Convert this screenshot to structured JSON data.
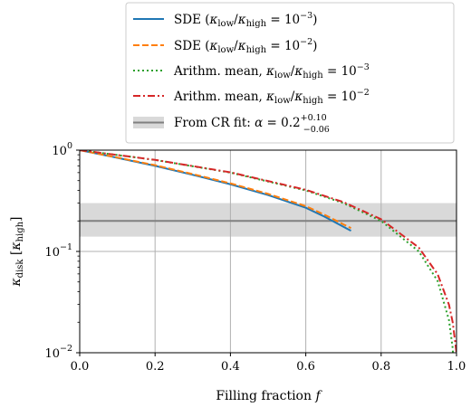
{
  "chart_data": {
    "type": "line",
    "xlabel": "Filling fraction f",
    "ylabel": "κ_disk [κ_high]",
    "xlim": [
      0.0,
      1.0
    ],
    "ylim": [
      0.01,
      1.0
    ],
    "yscale": "log",
    "grid": true,
    "legend_position": "top-center",
    "x_ticks": [
      0.0,
      0.2,
      0.4,
      0.6,
      0.8,
      1.0
    ],
    "x_tick_labels": [
      "0.0",
      "0.2",
      "0.4",
      "0.6",
      "0.8",
      "1.0"
    ],
    "y_ticks": [
      0.01,
      0.1,
      1.0
    ],
    "series": [
      {
        "name": "SDE (κ_low/κ_high = 10^-3)",
        "color": "#1f77b4",
        "style": "solid",
        "x": [
          0.0,
          0.1,
          0.2,
          0.3,
          0.4,
          0.5,
          0.6,
          0.65,
          0.7,
          0.72
        ],
        "y": [
          1.0,
          0.84,
          0.7,
          0.57,
          0.46,
          0.36,
          0.27,
          0.22,
          0.175,
          0.16
        ]
      },
      {
        "name": "SDE (κ_low/κ_high = 10^-2)",
        "color": "#ff7f0e",
        "style": "dashed",
        "x": [
          0.0,
          0.1,
          0.2,
          0.3,
          0.4,
          0.5,
          0.6,
          0.65,
          0.7,
          0.72
        ],
        "y": [
          1.0,
          0.845,
          0.71,
          0.58,
          0.47,
          0.37,
          0.28,
          0.23,
          0.185,
          0.17
        ]
      },
      {
        "name": "Arithm. mean, κ_low/κ_high = 10^-3",
        "color": "#2ca02c",
        "style": "dotted",
        "x": [
          0.0,
          0.2,
          0.4,
          0.6,
          0.7,
          0.8,
          0.9,
          0.95,
          0.98,
          0.99,
          0.999
        ],
        "y": [
          1.0,
          0.8,
          0.6,
          0.4,
          0.3,
          0.2,
          0.1,
          0.051,
          0.021,
          0.011,
          0.002
        ]
      },
      {
        "name": "Arithm. mean, κ_low/κ_high = 10^-2",
        "color": "#d62728",
        "style": "dashdot",
        "x": [
          0.0,
          0.2,
          0.4,
          0.6,
          0.7,
          0.8,
          0.9,
          0.95,
          0.98,
          0.99,
          1.0
        ],
        "y": [
          1.0,
          0.802,
          0.604,
          0.406,
          0.307,
          0.208,
          0.109,
          0.0595,
          0.0298,
          0.0199,
          0.01
        ]
      }
    ],
    "reference_band": {
      "name": "From CR fit: α = 0.2 +0.10 −0.06",
      "value": 0.2,
      "lower": 0.14,
      "upper": 0.3,
      "line_color": "#808080",
      "band_color": "#d9d9d9"
    }
  }
}
